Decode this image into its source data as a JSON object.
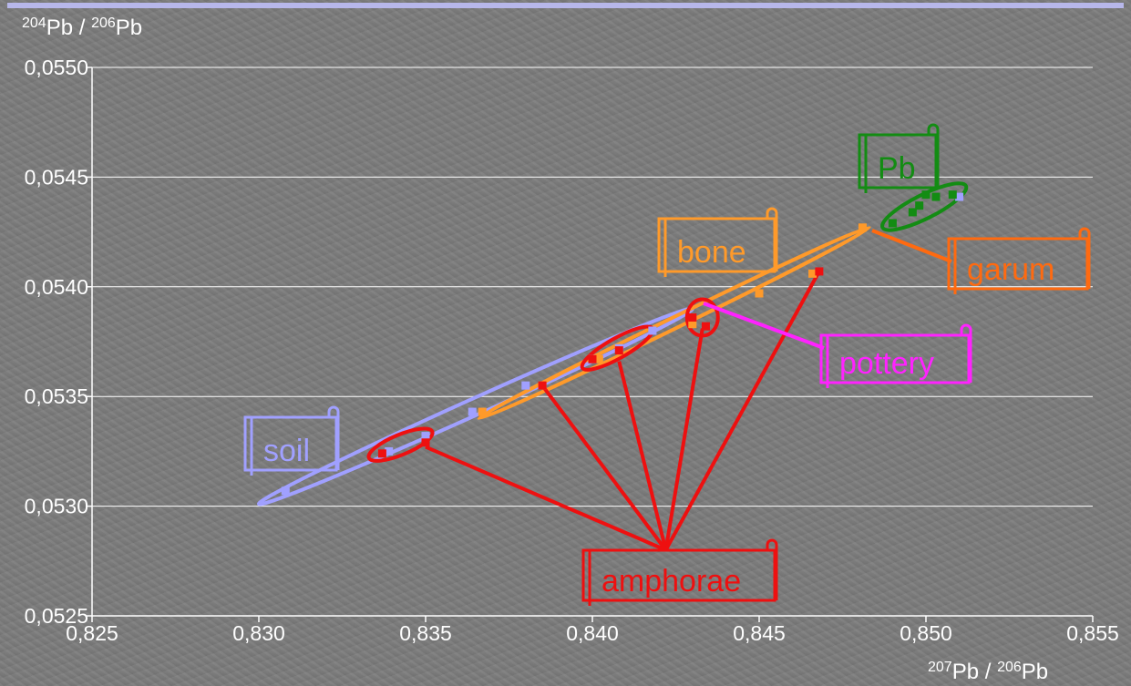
{
  "colors": {
    "background": "#7b7b7b",
    "rule": "#b7b7ea",
    "soil": "#a0a0ff",
    "bone": "#ff9a2a",
    "garum": "#ff6a10",
    "pb": "#138c13",
    "pottery": "#ff22ff",
    "amphorae": "#ee1010"
  },
  "axes": {
    "y_title_sup1": "204",
    "y_title_main1": "Pb / ",
    "y_title_sup2": "206",
    "y_title_main2": "Pb",
    "x_title_sup1": "207",
    "x_title_main1": "Pb / ",
    "x_title_sup2": "206",
    "x_title_main2": "Pb"
  },
  "chart_data": {
    "type": "scatter",
    "xlabel": "207Pb / 206Pb",
    "ylabel": "204Pb / 206Pb",
    "xlim": [
      0.825,
      0.855
    ],
    "ylim": [
      0.0525,
      0.055
    ],
    "grid": "horizontal",
    "x_ticks": [
      "0,825",
      "0,830",
      "0,835",
      "0,840",
      "0,845",
      "0,850",
      "0,855"
    ],
    "y_ticks": [
      "0,0525",
      "0,0530",
      "0,0535",
      "0,0540",
      "0,0545",
      "0,0550"
    ],
    "x_tick_values": [
      0.825,
      0.83,
      0.835,
      0.84,
      0.845,
      0.85,
      0.855
    ],
    "y_tick_values": [
      0.0525,
      0.053,
      0.0535,
      0.054,
      0.0545,
      0.055
    ],
    "series": [
      {
        "name": "soil",
        "color": "#a0a0ff",
        "points": [
          [
            0.8308,
            0.05307
          ],
          [
            0.8339,
            0.05325
          ],
          [
            0.835,
            0.05332
          ],
          [
            0.8364,
            0.05343
          ],
          [
            0.838,
            0.05355
          ],
          [
            0.84,
            0.05367
          ],
          [
            0.8408,
            0.05372
          ],
          [
            0.8418,
            0.0538
          ],
          [
            0.851,
            0.05441
          ]
        ]
      },
      {
        "name": "bone",
        "color": "#ff9a2a",
        "points": [
          [
            0.8367,
            0.05343
          ],
          [
            0.8385,
            0.05355
          ],
          [
            0.8402,
            0.05367
          ],
          [
            0.843,
            0.05383
          ],
          [
            0.845,
            0.05397
          ],
          [
            0.8466,
            0.05406
          ],
          [
            0.8481,
            0.05427
          ]
        ]
      },
      {
        "name": "Pb",
        "color": "#138c13",
        "points": [
          [
            0.849,
            0.05429
          ],
          [
            0.8496,
            0.05434
          ],
          [
            0.8498,
            0.05437
          ],
          [
            0.85,
            0.05442
          ],
          [
            0.8503,
            0.05441
          ],
          [
            0.8508,
            0.05442
          ]
        ]
      },
      {
        "name": "amphorae",
        "color": "#ee1010",
        "points": [
          [
            0.8337,
            0.05324
          ],
          [
            0.835,
            0.05329
          ],
          [
            0.8385,
            0.05355
          ],
          [
            0.84,
            0.05367
          ],
          [
            0.8408,
            0.05371
          ],
          [
            0.843,
            0.05386
          ],
          [
            0.8434,
            0.05382
          ],
          [
            0.8468,
            0.05407
          ]
        ]
      }
    ],
    "annotations": [
      {
        "text": "soil",
        "color": "#a0a0ff"
      },
      {
        "text": "bone",
        "color": "#ff9a2a"
      },
      {
        "text": "Pb",
        "color": "#138c13"
      },
      {
        "text": "garum",
        "color": "#ff6a10"
      },
      {
        "text": "pottery",
        "color": "#ff22ff"
      },
      {
        "text": "amphorae",
        "color": "#ee1010"
      }
    ]
  }
}
